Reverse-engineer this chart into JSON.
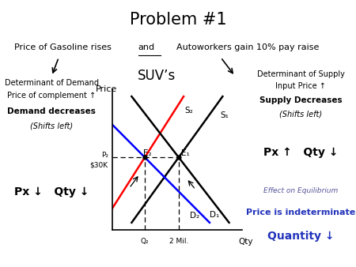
{
  "title": "Problem #1",
  "title_bg": "#d8b4fe",
  "subtitle_bg": "#ffffcc",
  "suv_label": "SUV’s",
  "graph_xlabel": "Qty",
  "graph_ylabel": "Price",
  "price_label": "$30K",
  "p2_label": "P₂",
  "q2_label": "Q₂",
  "mil_label": "2 Mil.",
  "e1_label": "E₁",
  "e2_label": "E₂",
  "s1_label": "S₁",
  "s2_label": "S₂",
  "d1_label": "D₁",
  "d2_label": "D₂",
  "box_demand_title": "Determinant of Demand",
  "box_demand_line2": "Price of complement ↑",
  "box_demand_line3": "Demand decreases",
  "box_demand_line4": "(Shifts left)",
  "box_supply_title": "Determinant of Supply",
  "box_supply_line2": "Input Price ↑",
  "box_supply_line3": "Supply Decreases",
  "box_supply_line4": "(Shifts left)",
  "box_px_left": "Px ↓   Qty ↓",
  "box_px_right": "Px ↑   Qty ↓",
  "box_effect_line1": "Effect on Equilibrium",
  "box_effect_line2": "Price is indeterminate",
  "box_effect_line3": "Quantity ↓",
  "bg_color": "#ffffff",
  "subtitle_border": "#cc8800",
  "title_border": "#888888"
}
